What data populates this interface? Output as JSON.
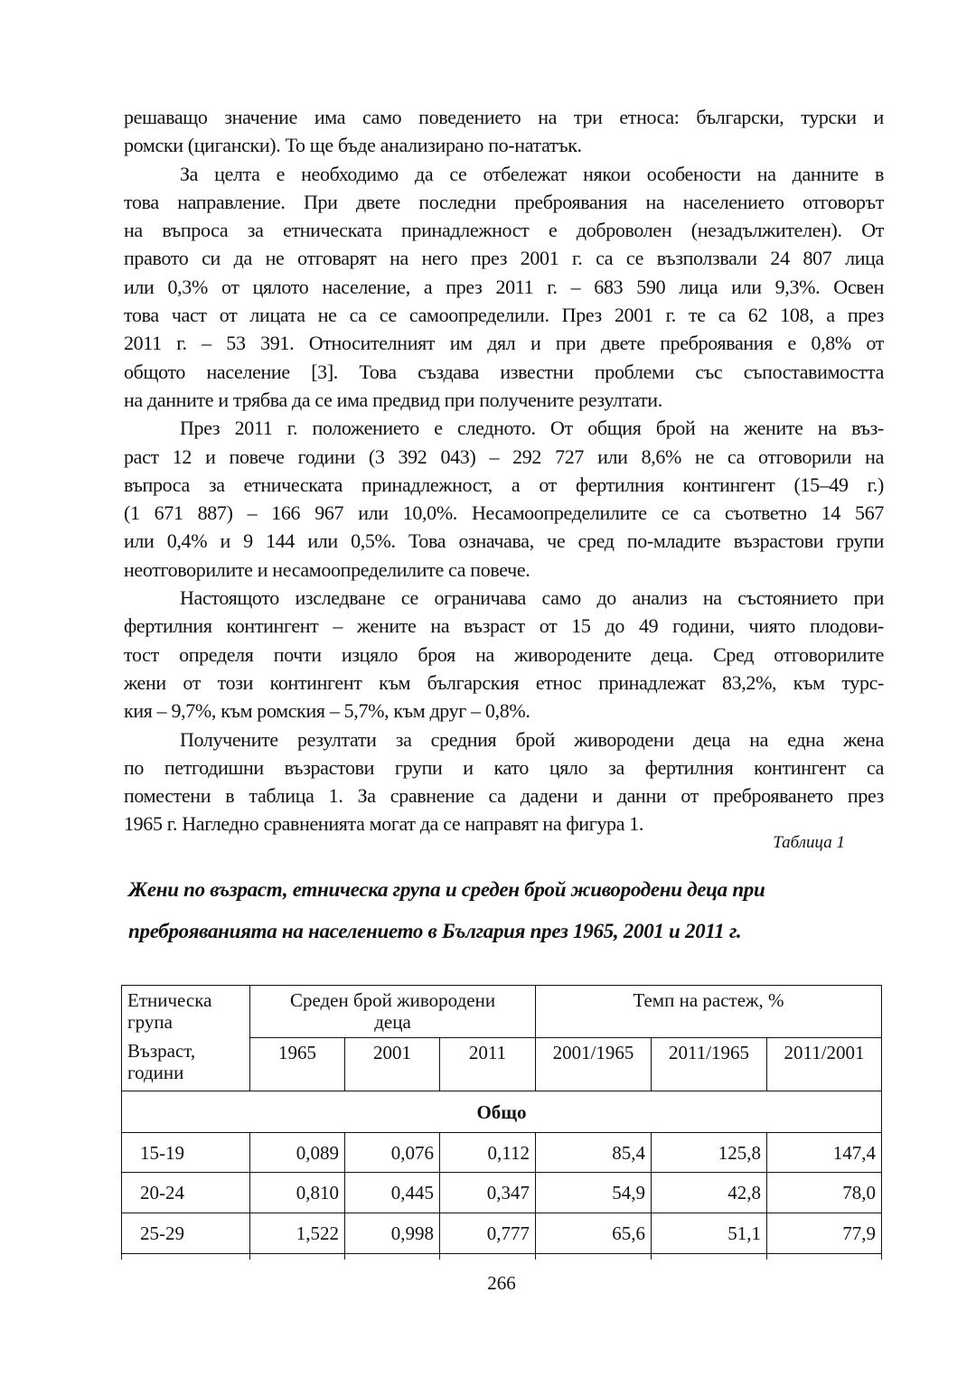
{
  "paragraphs": [
    {
      "indent": false,
      "lines": [
        "решаващо значение има само поведението на три етноса:  български, турски и",
        "ромски (цигански). То ще бъде анализирано по-нататък."
      ]
    },
    {
      "indent": true,
      "lines": [
        "За целта е необходимо да се отбележат някои особености на данните в",
        "това направление. При двете последни преброявания на населението отговорът",
        "на въпроса за етническата принадлежност е доброволен (незадължителен). От",
        "правото си да не отговарят на него през 2001 г. са се възползвали 24 807 лица",
        "или 0,3% от цялото население, а през 2011 г. – 683 590 лица или 9,3%. Освен",
        "това част от лицата не са се самоопределили. През 2001 г. те са 62 108, а през",
        "2011 г. – 53 391. Относителният им дял и при двете преброявания е 0,8% от",
        "общото население [3]. Това създава известни проблеми със съпоставимостта",
        "на данните и трябва да се има предвид при получените резултати."
      ]
    },
    {
      "indent": true,
      "lines": [
        "През 2011 г. положението е следното. От общия брой на жените на въз-",
        "раст 12 и повече години (3 392 043) – 292 727 или 8,6% не са отговорили на",
        "въпроса за етническата принадлежност, а от фертилния контингент (15–49 г.)",
        "(1 671 887) – 166 967 или 10,0%. Несамоопределилите се са съответно 14 567",
        "или 0,4% и 9 144 или 0,5%. Това означава, че сред по-младите възрастови групи",
        "неотговорилите и несамоопределилите са повече."
      ]
    },
    {
      "indent": true,
      "lines": [
        "Настоящото изследване се ограничава само до анализ на състоянието при",
        "фертилния контингент – жените на възраст от 15 до 49 години, чиято плодови-",
        "тост определя почти изцяло броя на живородените деца. Сред отговорилите",
        "жени от този контингент към българския етнос принадлежат 83,2%, към турс-",
        "кия – 9,7%, към ромския – 5,7%, към друг – 0,8%."
      ]
    },
    {
      "indent": true,
      "lines": [
        "Получените резултати за средния брой живородени деца на една жена",
        "по петгодишни възрастови групи и като цяло за фертилния контингент са",
        "поместени в таблица 1. За сравнение са дадени и данни от преброяването през",
        "1965 г. Нагледно сравненията могат да се направят на фигура 1."
      ]
    }
  ],
  "table_label": "Таблица 1",
  "caption": {
    "line1": "Жени по възраст, етническа група и среден брой живородени деца при",
    "line2": "преброяванията на населението в България през 1965, 2001 и 2011 г."
  },
  "table": {
    "header_group_label": "Етническа група",
    "header_age_label": "Възраст, години",
    "header_avg": "Среден брой живородени деца",
    "header_growth": "Темп на растеж, %",
    "years": [
      "1965",
      "2001",
      "2011"
    ],
    "ratios": [
      "2001/1965",
      "2011/1965",
      "2011/2001"
    ],
    "section": "Общо",
    "rows": [
      {
        "age": "15-19",
        "values": [
          "0,089",
          "0,076",
          "0,112",
          "85,4",
          "125,8",
          "147,4"
        ]
      },
      {
        "age": "20-24",
        "values": [
          "0,810",
          "0,445",
          "0,347",
          "54,9",
          "42,8",
          "78,0"
        ]
      },
      {
        "age": "25-29",
        "values": [
          "1,522",
          "0,998",
          "0,777",
          "65,6",
          "51,1",
          "77,9"
        ]
      }
    ]
  },
  "page_number": "266"
}
